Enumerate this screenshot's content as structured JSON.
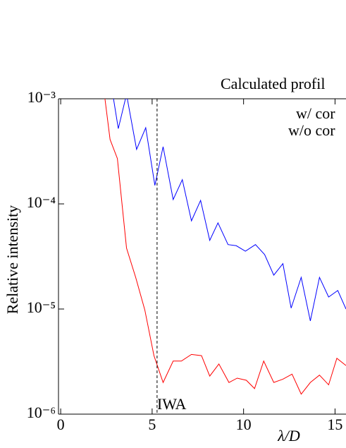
{
  "chart_data": {
    "type": "line",
    "title": "Calculated profil",
    "x_label": "λ/D",
    "y_label": "Relative intensity",
    "log_y": true,
    "xlim": [
      -0.12,
      15.6
    ],
    "xticks": [
      0,
      5,
      10,
      15
    ],
    "ylim": [
      1e-06,
      0.001
    ],
    "yticks": [
      {
        "value": 1e-06,
        "label": "10⁻⁶"
      },
      {
        "value": 1e-05,
        "label": "10⁻⁵"
      },
      {
        "value": 0.0001,
        "label": "10⁻⁴"
      },
      {
        "value": 0.001,
        "label": "10⁻³"
      }
    ],
    "annotation": {
      "x": 5.27,
      "label": "IWA"
    },
    "series": [
      {
        "name": "w/ cor",
        "color": "#ff0000",
        "x": [
          2.42,
          2.7,
          3.1,
          3.6,
          4.1,
          4.6,
          5.1,
          5.6,
          6.15,
          6.6,
          7.15,
          7.7,
          8.15,
          8.65,
          9.2,
          9.65,
          10.15,
          10.6,
          11.1,
          11.65,
          12.15,
          12.65,
          13.15,
          13.65,
          14.15,
          14.65,
          15.1,
          15.6
        ],
        "values": [
          0.001,
          0.00041,
          0.00027,
          3.8e-05,
          2e-05,
          9.8e-06,
          3.6e-06,
          2e-06,
          3.2e-06,
          3.2e-06,
          3.7e-06,
          3.6e-06,
          2.3e-06,
          3e-06,
          2e-06,
          2.2e-06,
          2.1e-06,
          1.75e-06,
          3.2e-06,
          2e-06,
          2.15e-06,
          2.4e-06,
          1.55e-06,
          2e-06,
          2.35e-06,
          1.9e-06,
          3.4e-06,
          2.9e-06
        ]
      },
      {
        "name": "w/o cor",
        "color": "#0000ff",
        "x": [
          2.85,
          3.15,
          3.6,
          4.15,
          4.65,
          5.15,
          5.6,
          6.15,
          6.65,
          7.15,
          7.65,
          8.15,
          8.6,
          9.15,
          9.6,
          10.1,
          10.65,
          11.15,
          11.65,
          12.15,
          12.6,
          13.15,
          13.65,
          14.15,
          14.65,
          15.15,
          15.6
        ],
        "values": [
          0.0011,
          0.00052,
          0.0011,
          0.00033,
          0.00053,
          0.00015,
          0.00035,
          0.00011,
          0.00017,
          6.9e-05,
          0.000108,
          4.5e-05,
          6.6e-05,
          4.1e-05,
          4e-05,
          3.55e-05,
          4.1e-05,
          3.3e-05,
          2.1e-05,
          2.7e-05,
          1.02e-05,
          2e-05,
          7.7e-06,
          2e-05,
          1.3e-05,
          1.5e-05,
          1e-05
        ]
      }
    ]
  }
}
